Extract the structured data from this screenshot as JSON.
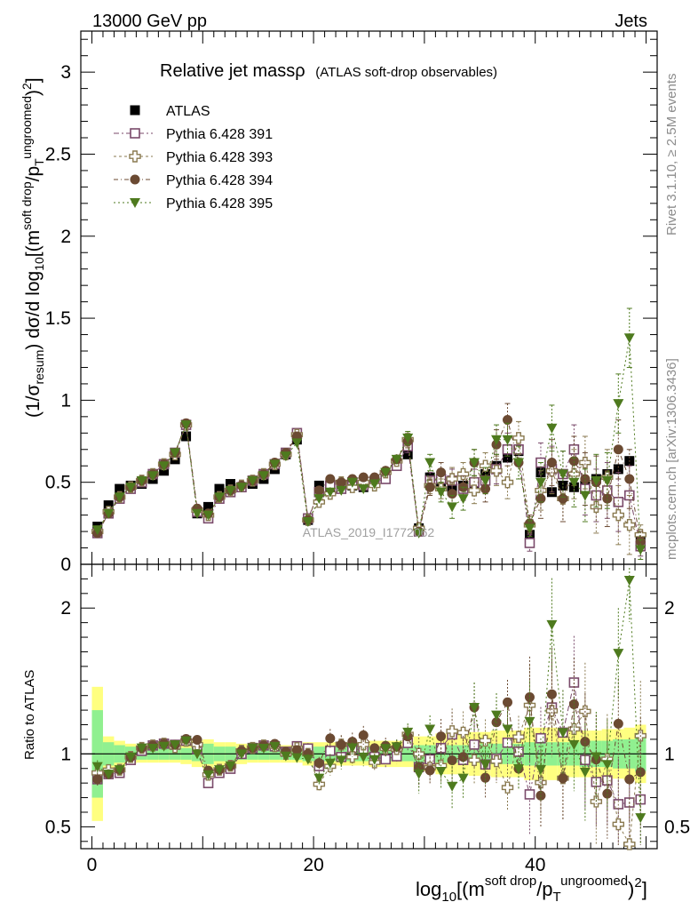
{
  "header": {
    "left": "13000 GeV pp",
    "right": "Jets"
  },
  "chart_data": {
    "type": "scatter",
    "title_main": "Relative jet massρ",
    "title_sub": "(ATLAS soft-drop observables)",
    "analysis_watermark": "ATLAS_2019_I1772062",
    "side_label_top": "Rivet 3.1.10, ≥ 2.5M events",
    "side_label_bottom": "mcplots.cern.ch [arXiv:1306.3436]",
    "ylabel_main": "(1/σresum) dσ/d log10[(m soft drop/pT ungroomed)2]",
    "ylabel_ratio": "Ratio to ATLAS",
    "xlabel": "log10[(m soft drop/pT ungroomed)2]",
    "xlim": [
      -1,
      51
    ],
    "ylim": [
      0,
      3.25
    ],
    "ratio_ylim": [
      0.35,
      2.3
    ],
    "x_ticks": [
      0,
      20,
      40
    ],
    "x_tick_labels": [
      "0",
      "20",
      "40"
    ],
    "y_ticks": [
      0,
      0.5,
      1,
      1.5,
      2,
      2.5,
      3
    ],
    "y_tick_labels": [
      "0",
      "0.5",
      "1",
      "1.5",
      "2",
      "2.5",
      "3"
    ],
    "ratio_ticks": [
      0.5,
      1,
      2
    ],
    "ratio_tick_labels": [
      "0.5",
      "1",
      "2"
    ],
    "x": [
      0.5,
      1.5,
      2.5,
      3.5,
      4.5,
      5.5,
      6.5,
      7.5,
      8.5,
      9.5,
      10.5,
      11.5,
      12.5,
      13.5,
      14.5,
      15.5,
      16.5,
      17.5,
      18.5,
      19.5,
      20.5,
      21.5,
      22.5,
      23.5,
      24.5,
      25.5,
      26.5,
      27.5,
      28.5,
      29.5,
      30.5,
      31.5,
      32.5,
      33.5,
      34.5,
      35.5,
      36.5,
      37.5,
      38.5,
      39.5,
      40.5,
      41.5,
      42.5,
      43.5,
      44.5,
      45.5,
      46.5,
      47.5,
      48.5,
      49.5
    ],
    "series": [
      {
        "name": "ATLAS",
        "marker": "filled-square",
        "color": "#000000",
        "values": [
          0.23,
          0.36,
          0.46,
          0.48,
          0.49,
          0.52,
          0.57,
          0.64,
          0.78,
          0.31,
          0.35,
          0.46,
          0.49,
          0.47,
          0.49,
          0.52,
          0.58,
          0.67,
          0.76,
          0.27,
          0.48,
          0.47,
          0.47,
          0.48,
          0.47,
          0.51,
          0.54,
          0.61,
          0.67,
          0.22,
          0.53,
          0.5,
          0.45,
          0.48,
          0.47,
          0.55,
          0.6,
          0.65,
          0.69,
          0.18,
          0.56,
          0.44,
          0.48,
          0.47,
          0.48,
          0.52,
          0.55,
          0.58,
          0.63,
          0.16
        ],
        "errors": [
          0.02,
          0.02,
          0.02,
          0.02,
          0.02,
          0.02,
          0.02,
          0.02,
          0.02,
          0.02,
          0.02,
          0.02,
          0.02,
          0.02,
          0.02,
          0.02,
          0.02,
          0.02,
          0.02,
          0.02,
          0.02,
          0.02,
          0.02,
          0.02,
          0.02,
          0.02,
          0.02,
          0.02,
          0.02,
          0.02,
          0.02,
          0.02,
          0.02,
          0.02,
          0.02,
          0.02,
          0.02,
          0.02,
          0.02,
          0.02,
          0.02,
          0.02,
          0.02,
          0.02,
          0.02,
          0.02,
          0.02,
          0.02,
          0.02,
          0.02
        ]
      },
      {
        "name": "Pythia 6.428 391",
        "marker": "open-square",
        "color": "#7a4a6a",
        "values": [
          0.19,
          0.31,
          0.4,
          0.46,
          0.5,
          0.55,
          0.61,
          0.68,
          0.85,
          0.32,
          0.28,
          0.4,
          0.44,
          0.47,
          0.51,
          0.55,
          0.61,
          0.68,
          0.8,
          0.28,
          0.44,
          0.48,
          0.46,
          0.5,
          0.48,
          0.5,
          0.52,
          0.6,
          0.72,
          0.2,
          0.51,
          0.52,
          0.51,
          0.46,
          0.5,
          0.51,
          0.58,
          0.7,
          0.7,
          0.13,
          0.62,
          0.58,
          0.55,
          0.7,
          0.46,
          0.42,
          0.45,
          0.38,
          0.42,
          0.11
        ],
        "errors": [
          0.01,
          0.01,
          0.01,
          0.01,
          0.01,
          0.01,
          0.01,
          0.01,
          0.01,
          0.01,
          0.01,
          0.01,
          0.01,
          0.01,
          0.01,
          0.01,
          0.01,
          0.01,
          0.01,
          0.01,
          0.02,
          0.03,
          0.03,
          0.03,
          0.03,
          0.03,
          0.03,
          0.03,
          0.04,
          0.03,
          0.05,
          0.06,
          0.07,
          0.07,
          0.08,
          0.08,
          0.09,
          0.1,
          0.1,
          0.05,
          0.12,
          0.14,
          0.14,
          0.15,
          0.16,
          0.16,
          0.17,
          0.18,
          0.18,
          0.06
        ]
      },
      {
        "name": "Pythia 6.428 393",
        "marker": "open-cross",
        "color": "#8a7a50",
        "values": [
          0.2,
          0.32,
          0.41,
          0.47,
          0.51,
          0.55,
          0.61,
          0.67,
          0.85,
          0.33,
          0.3,
          0.41,
          0.45,
          0.48,
          0.51,
          0.55,
          0.61,
          0.67,
          0.79,
          0.27,
          0.38,
          0.43,
          0.5,
          0.47,
          0.5,
          0.48,
          0.56,
          0.63,
          0.76,
          0.22,
          0.48,
          0.46,
          0.52,
          0.55,
          0.45,
          0.6,
          0.57,
          0.5,
          0.77,
          0.24,
          0.45,
          0.57,
          0.4,
          0.55,
          0.62,
          0.35,
          0.53,
          0.3,
          0.24,
          0.18
        ],
        "errors": [
          0.01,
          0.01,
          0.01,
          0.01,
          0.01,
          0.01,
          0.01,
          0.01,
          0.01,
          0.01,
          0.01,
          0.01,
          0.01,
          0.01,
          0.01,
          0.01,
          0.01,
          0.01,
          0.01,
          0.01,
          0.02,
          0.03,
          0.03,
          0.03,
          0.03,
          0.03,
          0.03,
          0.03,
          0.04,
          0.03,
          0.05,
          0.06,
          0.07,
          0.07,
          0.08,
          0.08,
          0.09,
          0.1,
          0.1,
          0.05,
          0.12,
          0.14,
          0.14,
          0.15,
          0.16,
          0.16,
          0.17,
          0.18,
          0.18,
          0.06
        ]
      },
      {
        "name": "Pythia 6.428 394",
        "marker": "filled-circle",
        "color": "#6b4a32",
        "values": [
          0.19,
          0.31,
          0.41,
          0.47,
          0.51,
          0.55,
          0.61,
          0.68,
          0.86,
          0.34,
          0.31,
          0.41,
          0.45,
          0.48,
          0.51,
          0.55,
          0.62,
          0.68,
          0.78,
          0.27,
          0.45,
          0.52,
          0.5,
          0.52,
          0.53,
          0.53,
          0.57,
          0.64,
          0.75,
          0.2,
          0.47,
          0.56,
          0.43,
          0.47,
          0.62,
          0.46,
          0.73,
          0.88,
          0.62,
          0.25,
          0.4,
          0.62,
          0.4,
          0.63,
          0.52,
          0.5,
          0.4,
          0.7,
          0.52,
          0.14
        ],
        "errors": [
          0.01,
          0.01,
          0.01,
          0.01,
          0.01,
          0.01,
          0.01,
          0.01,
          0.01,
          0.01,
          0.01,
          0.01,
          0.01,
          0.01,
          0.01,
          0.01,
          0.01,
          0.01,
          0.01,
          0.01,
          0.02,
          0.03,
          0.03,
          0.03,
          0.03,
          0.03,
          0.03,
          0.03,
          0.04,
          0.03,
          0.05,
          0.06,
          0.07,
          0.07,
          0.08,
          0.08,
          0.09,
          0.1,
          0.1,
          0.05,
          0.12,
          0.14,
          0.14,
          0.15,
          0.16,
          0.16,
          0.17,
          0.18,
          0.18,
          0.06
        ]
      },
      {
        "name": "Pythia 6.428 395",
        "marker": "filled-triangle-down",
        "color": "#4e7a1e",
        "values": [
          0.21,
          0.31,
          0.41,
          0.47,
          0.51,
          0.54,
          0.6,
          0.68,
          0.85,
          0.31,
          0.3,
          0.41,
          0.45,
          0.47,
          0.51,
          0.54,
          0.61,
          0.66,
          0.74,
          0.26,
          0.4,
          0.44,
          0.45,
          0.5,
          0.46,
          0.49,
          0.56,
          0.64,
          0.77,
          0.19,
          0.62,
          0.44,
          0.35,
          0.4,
          0.62,
          0.51,
          0.76,
          0.76,
          0.62,
          0.22,
          0.5,
          0.83,
          0.55,
          0.5,
          0.42,
          0.51,
          0.51,
          0.98,
          1.38,
          0.09
        ],
        "errors": [
          0.01,
          0.01,
          0.01,
          0.01,
          0.01,
          0.01,
          0.01,
          0.01,
          0.01,
          0.01,
          0.01,
          0.01,
          0.01,
          0.01,
          0.01,
          0.01,
          0.01,
          0.01,
          0.01,
          0.01,
          0.02,
          0.03,
          0.03,
          0.03,
          0.03,
          0.03,
          0.03,
          0.03,
          0.04,
          0.03,
          0.05,
          0.06,
          0.07,
          0.07,
          0.08,
          0.08,
          0.09,
          0.1,
          0.1,
          0.05,
          0.12,
          0.14,
          0.14,
          0.15,
          0.16,
          0.16,
          0.17,
          0.18,
          0.18,
          0.06
        ]
      }
    ],
    "ratio_band": {
      "inner_color": "#90f090",
      "outer_color": "#ffff80",
      "inner_halfwidth": [
        0.3,
        0.08,
        0.06,
        0.05,
        0.04,
        0.04,
        0.04,
        0.04,
        0.04,
        0.05,
        0.07,
        0.05,
        0.05,
        0.04,
        0.04,
        0.04,
        0.04,
        0.04,
        0.04,
        0.05,
        0.05,
        0.05,
        0.05,
        0.05,
        0.05,
        0.05,
        0.05,
        0.05,
        0.05,
        0.06,
        0.06,
        0.06,
        0.06,
        0.06,
        0.06,
        0.07,
        0.07,
        0.07,
        0.07,
        0.08,
        0.08,
        0.08,
        0.08,
        0.08,
        0.09,
        0.09,
        0.09,
        0.1,
        0.1,
        0.12
      ],
      "outer_halfwidth": [
        0.46,
        0.12,
        0.09,
        0.07,
        0.06,
        0.06,
        0.06,
        0.06,
        0.07,
        0.09,
        0.1,
        0.08,
        0.08,
        0.07,
        0.06,
        0.06,
        0.06,
        0.06,
        0.06,
        0.08,
        0.08,
        0.08,
        0.08,
        0.08,
        0.08,
        0.09,
        0.09,
        0.09,
        0.09,
        0.12,
        0.12,
        0.14,
        0.14,
        0.14,
        0.15,
        0.15,
        0.16,
        0.16,
        0.16,
        0.18,
        0.18,
        0.18,
        0.17,
        0.16,
        0.16,
        0.16,
        0.17,
        0.17,
        0.18,
        0.2
      ]
    }
  }
}
